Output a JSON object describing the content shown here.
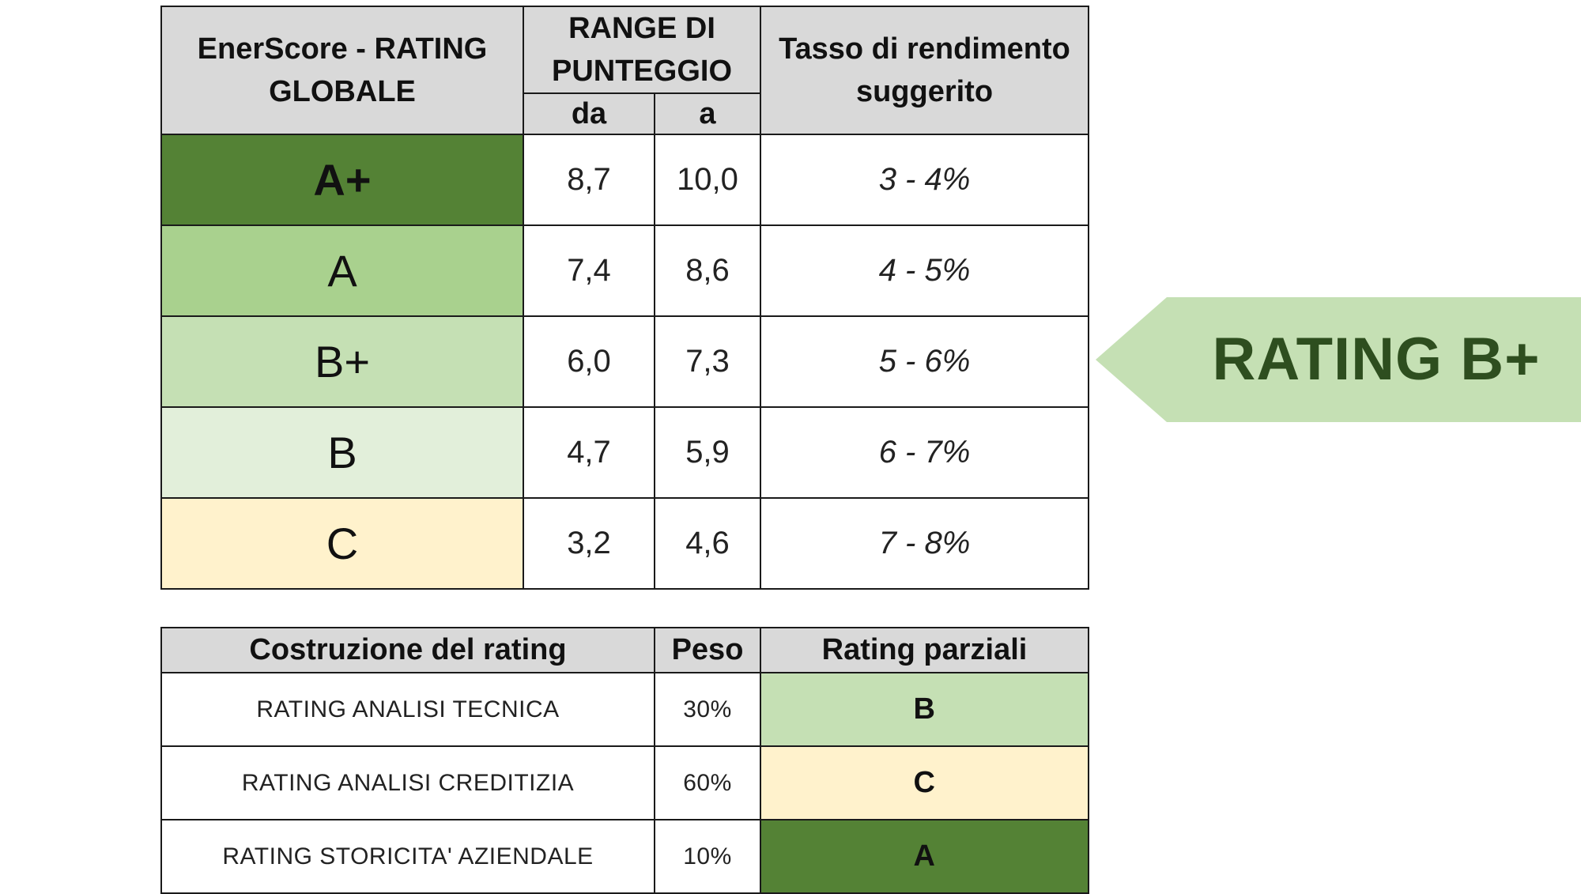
{
  "scale_table": {
    "header": {
      "rating_col": "EnerScore - RATING GLOBALE",
      "range_col": "RANGE DI PUNTEGGIO",
      "range_from": "da",
      "range_to": "a",
      "yield_col": "Tasso di rendimento suggerito"
    },
    "rows": [
      {
        "grade": "A+",
        "from": "8,7",
        "to": "10,0",
        "yield": "3 - 4%",
        "color": "#548235"
      },
      {
        "grade": "A",
        "from": "7,4",
        "to": "8,6",
        "yield": "4 - 5%",
        "color": "#a9d18e"
      },
      {
        "grade": "B+",
        "from": "6,0",
        "to": "7,3",
        "yield": "5 - 6%",
        "color": "#c5e0b4"
      },
      {
        "grade": "B",
        "from": "4,7",
        "to": "5,9",
        "yield": "6 - 7%",
        "color": "#e2efda"
      },
      {
        "grade": "C",
        "from": "3,2",
        "to": "4,6",
        "yield": "7 - 8%",
        "color": "#fff2cc"
      }
    ]
  },
  "composition_table": {
    "header": {
      "component_col": "Costruzione del rating",
      "weight_col": "Peso",
      "partial_col": "Rating parziali"
    },
    "rows": [
      {
        "component": "RATING  ANALISI TECNICA",
        "weight": "30%",
        "partial": "B",
        "color": "#c5e0b4"
      },
      {
        "component": "RATING ANALISI CREDITIZIA",
        "weight": "60%",
        "partial": "C",
        "color": "#fff2cc"
      },
      {
        "component": "RATING STORICITA' AZIENDALE",
        "weight": "10%",
        "partial": "A",
        "color": "#548235"
      }
    ]
  },
  "callout": {
    "label": "RATING B+",
    "color": "#c5e0b4",
    "text_color": "#2e4e1f"
  },
  "colors": {
    "header_bg": "#d9d9d9",
    "border": "#1a1a1a"
  }
}
